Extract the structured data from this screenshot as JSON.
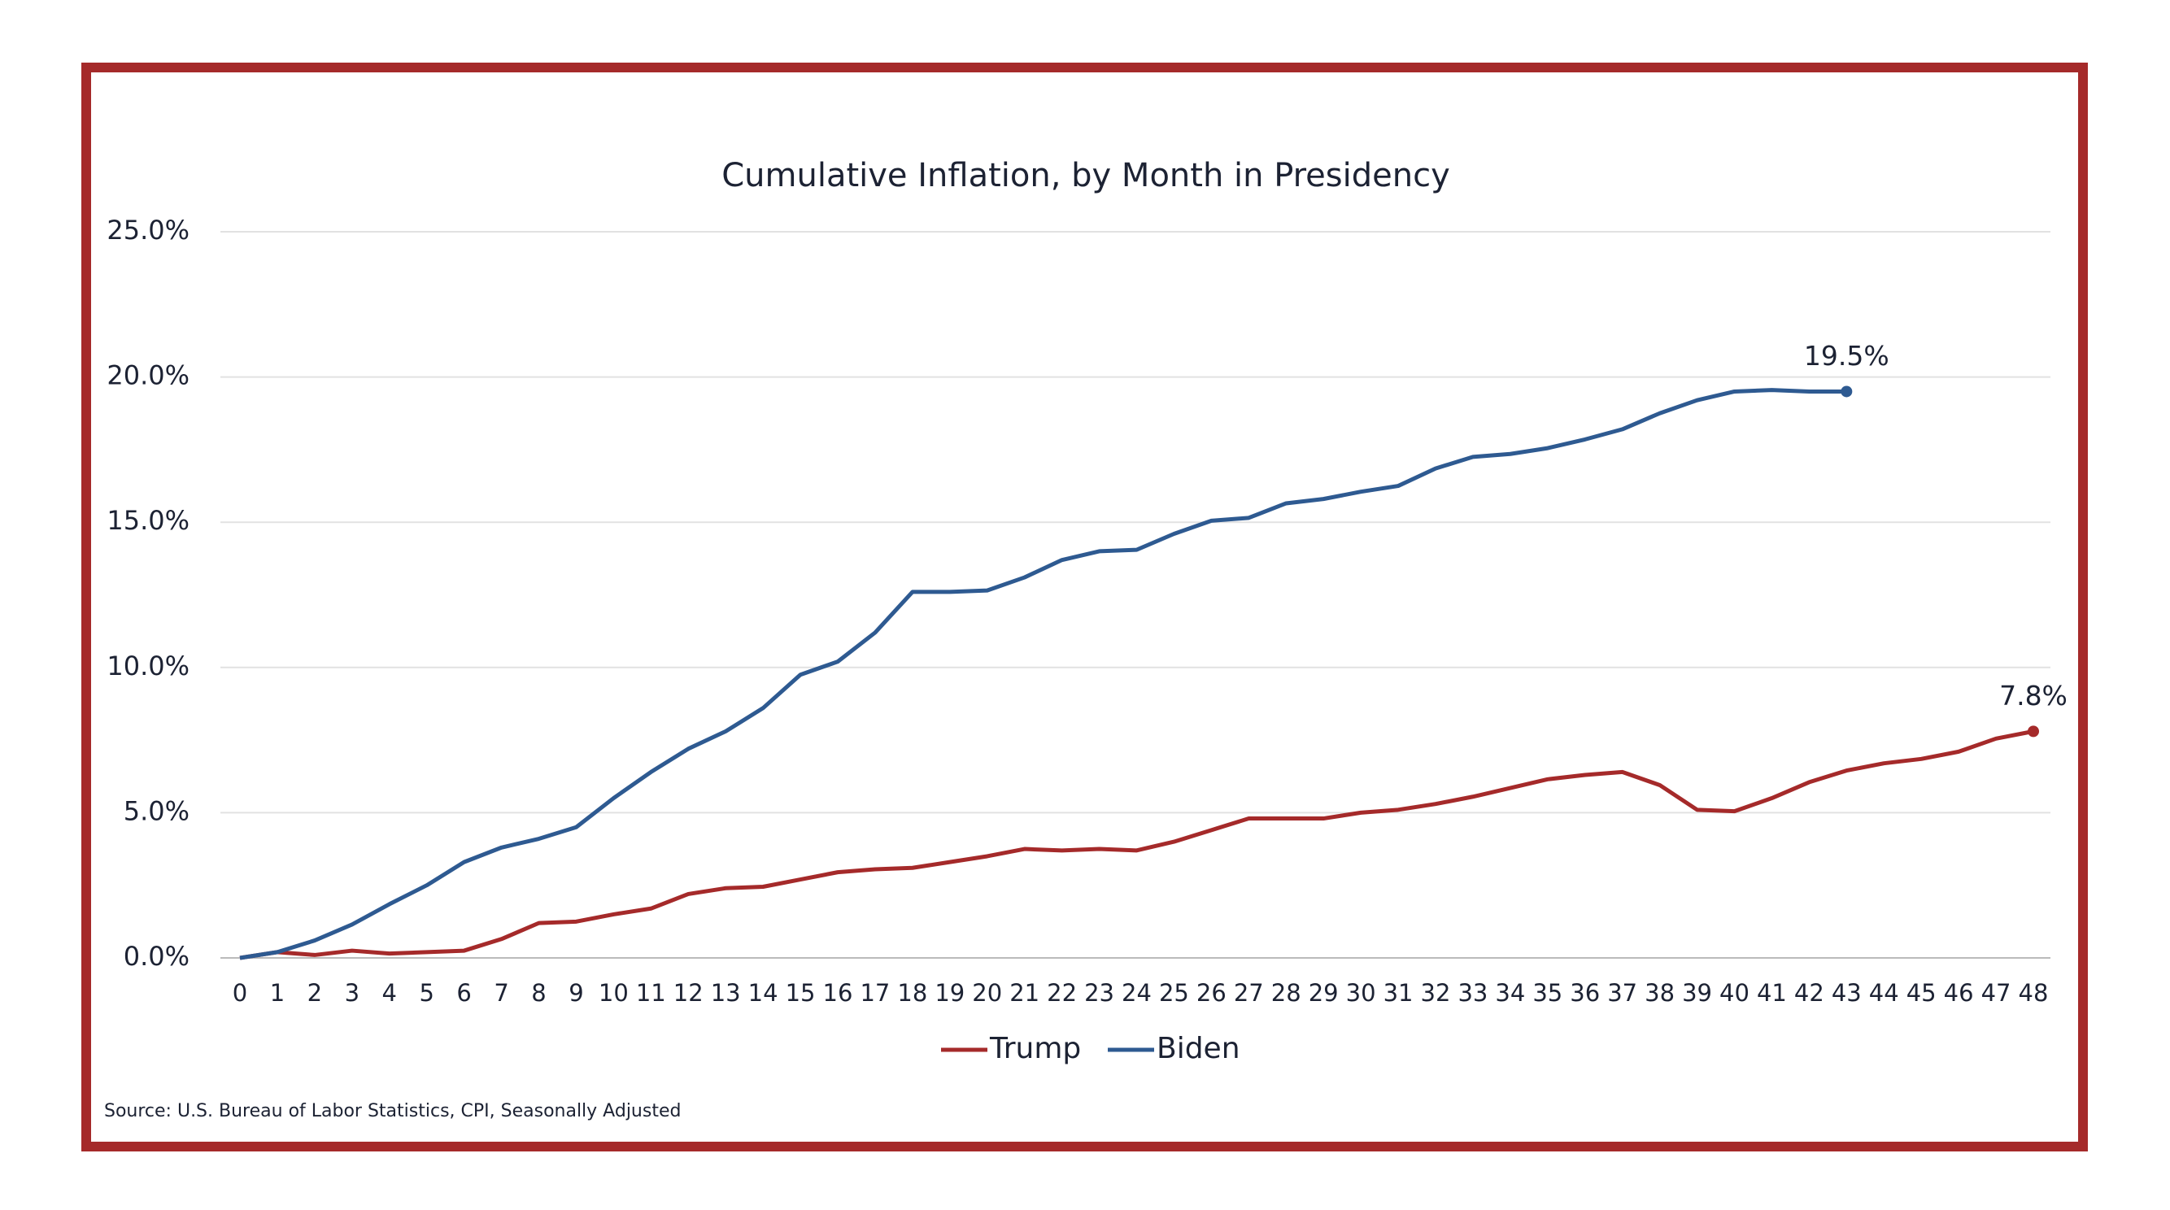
{
  "chart_data": {
    "type": "line",
    "title": "Cumulative Inflation, by Month in Presidency",
    "source": "Source: U.S. Bureau of Labor Statistics, CPI, Seasonally Adjusted",
    "x": [
      0,
      1,
      2,
      3,
      4,
      5,
      6,
      7,
      8,
      9,
      10,
      11,
      12,
      13,
      14,
      15,
      16,
      17,
      18,
      19,
      20,
      21,
      22,
      23,
      24,
      25,
      26,
      27,
      28,
      29,
      30,
      31,
      32,
      33,
      34,
      35,
      36,
      37,
      38,
      39,
      40,
      41,
      42,
      43,
      44,
      45,
      46,
      47,
      48
    ],
    "xlim": [
      0,
      48
    ],
    "xticks": [
      0,
      1,
      2,
      3,
      4,
      5,
      6,
      7,
      8,
      9,
      10,
      11,
      12,
      13,
      14,
      15,
      16,
      17,
      18,
      19,
      20,
      21,
      22,
      23,
      24,
      25,
      26,
      27,
      28,
      29,
      30,
      31,
      32,
      33,
      34,
      35,
      36,
      37,
      38,
      39,
      40,
      41,
      42,
      43,
      44,
      45,
      46,
      47,
      48
    ],
    "ylim": [
      0,
      25
    ],
    "yticks": [
      {
        "value": 0,
        "label": "0.0%"
      },
      {
        "value": 5,
        "label": "5.0%"
      },
      {
        "value": 10,
        "label": "10.0%"
      },
      {
        "value": 15,
        "label": "15.0%"
      },
      {
        "value": 20,
        "label": "20.0%"
      },
      {
        "value": 25,
        "label": "25.0%"
      }
    ],
    "grid": true,
    "legend": "bottom",
    "series": [
      {
        "name": "Trump",
        "color": "#a52a2a",
        "end_label": "7.8%",
        "values": [
          0,
          0.2,
          0.1,
          0.25,
          0.15,
          0.2,
          0.25,
          0.65,
          1.2,
          1.25,
          1.5,
          1.7,
          2.2,
          2.4,
          2.45,
          2.7,
          2.95,
          3.05,
          3.1,
          3.3,
          3.5,
          3.75,
          3.7,
          3.75,
          3.7,
          4.0,
          4.4,
          4.8,
          4.8,
          4.8,
          5.0,
          5.1,
          5.3,
          5.55,
          5.85,
          6.15,
          6.3,
          6.4,
          5.95,
          5.1,
          5.05,
          5.5,
          6.05,
          6.45,
          6.7,
          6.85,
          7.1,
          7.55,
          7.8
        ]
      },
      {
        "name": "Biden",
        "color": "#2e5a91",
        "end_label": "19.5%",
        "values": [
          0,
          0.2,
          0.6,
          1.15,
          1.85,
          2.5,
          3.3,
          3.8,
          4.1,
          4.5,
          5.5,
          6.4,
          7.2,
          7.8,
          8.6,
          9.75,
          10.2,
          11.2,
          12.6,
          12.6,
          12.65,
          13.1,
          13.7,
          14.0,
          14.05,
          14.6,
          15.05,
          15.15,
          15.65,
          15.8,
          16.05,
          16.25,
          16.85,
          17.25,
          17.35,
          17.55,
          17.85,
          18.2,
          18.75,
          19.2,
          19.5,
          19.55,
          19.5,
          19.5,
          null,
          null,
          null,
          null,
          null
        ]
      }
    ]
  }
}
